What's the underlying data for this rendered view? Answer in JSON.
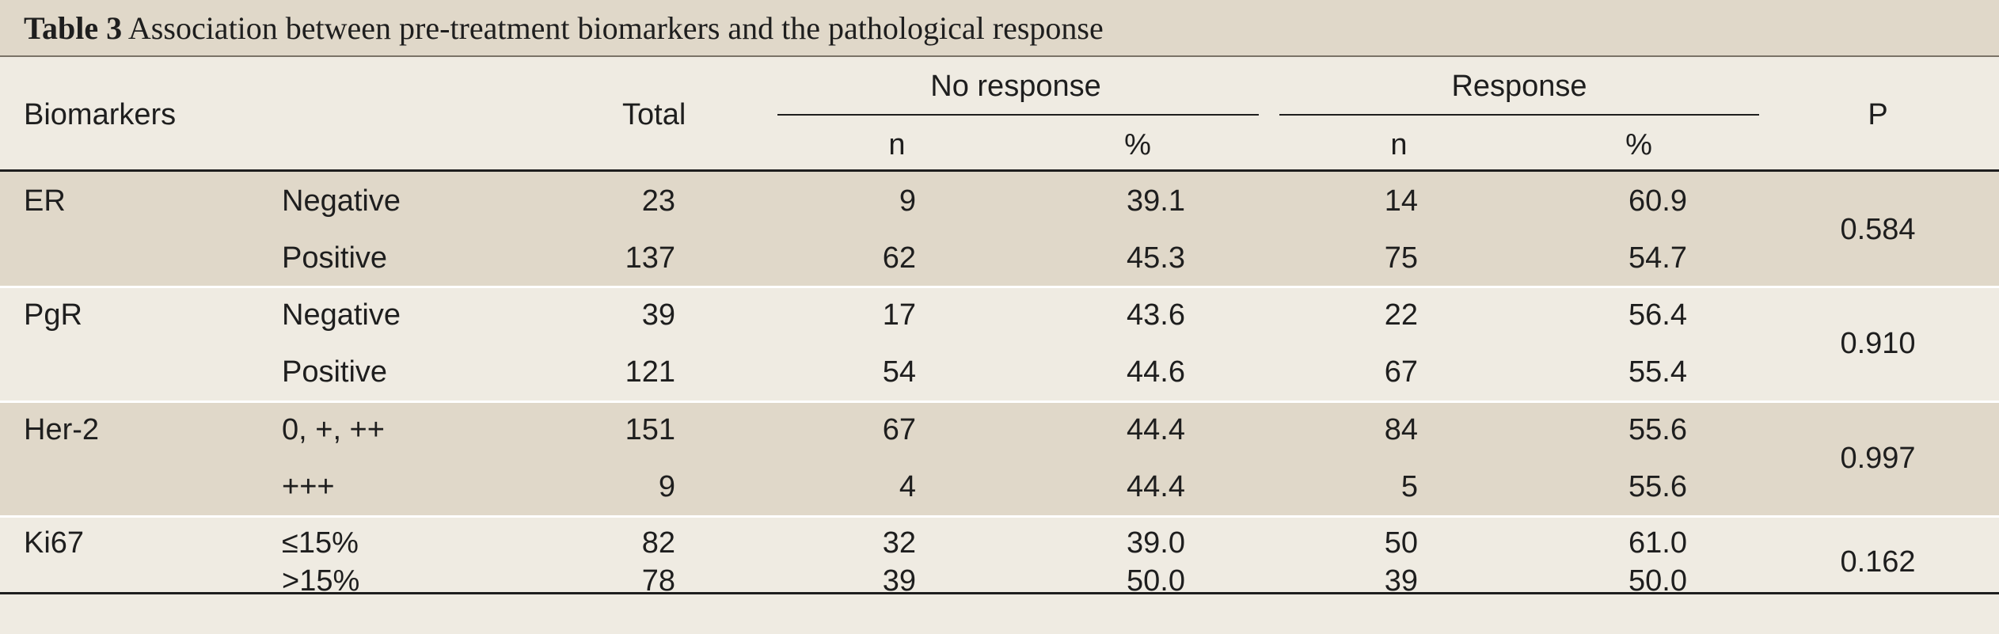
{
  "title": {
    "label": "Table 3",
    "text": "Association between pre-treatment biomarkers and the pathological response"
  },
  "header": {
    "biomarkers": "Biomarkers",
    "total": "Total",
    "no_response": "No response",
    "response": "Response",
    "p": "P",
    "n": "n",
    "pct": "%"
  },
  "groups": [
    {
      "name": "ER",
      "p": "0.584",
      "rows": [
        {
          "label": "Negative",
          "total": "23",
          "nr_n": "9",
          "nr_pct": "39.1",
          "r_n": "14",
          "r_pct": "60.9"
        },
        {
          "label": "Positive",
          "total": "137",
          "nr_n": "62",
          "nr_pct": "45.3",
          "r_n": "75",
          "r_pct": "54.7"
        }
      ]
    },
    {
      "name": "PgR",
      "p": "0.910",
      "rows": [
        {
          "label": "Negative",
          "total": "39",
          "nr_n": "17",
          "nr_pct": "43.6",
          "r_n": "22",
          "r_pct": "56.4"
        },
        {
          "label": "Positive",
          "total": "121",
          "nr_n": "54",
          "nr_pct": "44.6",
          "r_n": "67",
          "r_pct": "55.4"
        }
      ]
    },
    {
      "name": "Her-2",
      "p": "0.997",
      "rows": [
        {
          "label": "0, +, ++",
          "total": "151",
          "nr_n": "67",
          "nr_pct": "44.4",
          "r_n": "84",
          "r_pct": "55.6"
        },
        {
          "label": "+++",
          "total": "9",
          "nr_n": "4",
          "nr_pct": "44.4",
          "r_n": "5",
          "r_pct": "55.6"
        }
      ]
    },
    {
      "name": "Ki67",
      "p": "0.162",
      "rows": [
        {
          "label": "≤15%",
          "total": "82",
          "nr_n": "32",
          "nr_pct": "39.0",
          "r_n": "50",
          "r_pct": "61.0"
        },
        {
          "label": ">15%",
          "total": "78",
          "nr_n": "39",
          "nr_pct": "50.0",
          "r_n": "39",
          "r_pct": "50.0"
        }
      ]
    }
  ]
}
